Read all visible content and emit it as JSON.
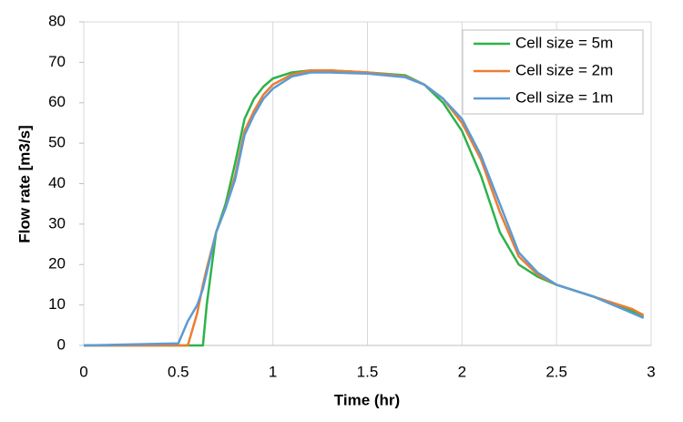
{
  "chart_data": {
    "type": "line",
    "x_label": "Time (hr)",
    "y_label": "Flow rate [m3/s]",
    "x": [
      0,
      0.5,
      0.55,
      0.6,
      0.63,
      0.65,
      0.7,
      0.75,
      0.8,
      0.85,
      0.9,
      0.95,
      1.0,
      1.1,
      1.2,
      1.3,
      1.5,
      1.7,
      1.8,
      1.9,
      2.0,
      2.1,
      2.2,
      2.3,
      2.4,
      2.5,
      2.6,
      2.7,
      2.8,
      2.9,
      2.96
    ],
    "series": [
      {
        "name": "Cell size = 5m",
        "color": "#2db34a",
        "values": [
          0,
          0,
          0,
          0,
          0,
          10,
          28,
          35,
          45,
          56,
          61,
          64,
          66,
          67.5,
          68,
          68,
          67.5,
          66.8,
          64.5,
          60,
          53,
          42,
          28,
          20,
          17,
          15,
          13.5,
          12,
          10,
          8.5,
          7
        ]
      },
      {
        "name": "Cell size = 2m",
        "color": "#ed7d31",
        "values": [
          0,
          0,
          0,
          8,
          15,
          19,
          28,
          34,
          42,
          53,
          58,
          62,
          64.5,
          67,
          68,
          68,
          67.5,
          66.5,
          64.5,
          61,
          55,
          46,
          33,
          22,
          17.5,
          15,
          13.5,
          12,
          10.5,
          9,
          7.5
        ]
      },
      {
        "name": "Cell size = 1m",
        "color": "#5b9bd5",
        "values": [
          0,
          0.5,
          6,
          10,
          14,
          18,
          28,
          34,
          41,
          52,
          57,
          61,
          63.5,
          66.5,
          67.5,
          67.5,
          67.2,
          66.3,
          64.5,
          61,
          56,
          47,
          35,
          23,
          18,
          15,
          13.5,
          12,
          10,
          8,
          6.8
        ]
      }
    ],
    "xlim": [
      0,
      3
    ],
    "xticks": [
      0,
      0.5,
      1,
      1.5,
      2,
      2.5,
      3
    ],
    "ylim": [
      0,
      80
    ],
    "yticks": [
      0,
      10,
      20,
      30,
      40,
      50,
      60,
      70,
      80
    ],
    "grid": true,
    "legend": "top-right"
  }
}
